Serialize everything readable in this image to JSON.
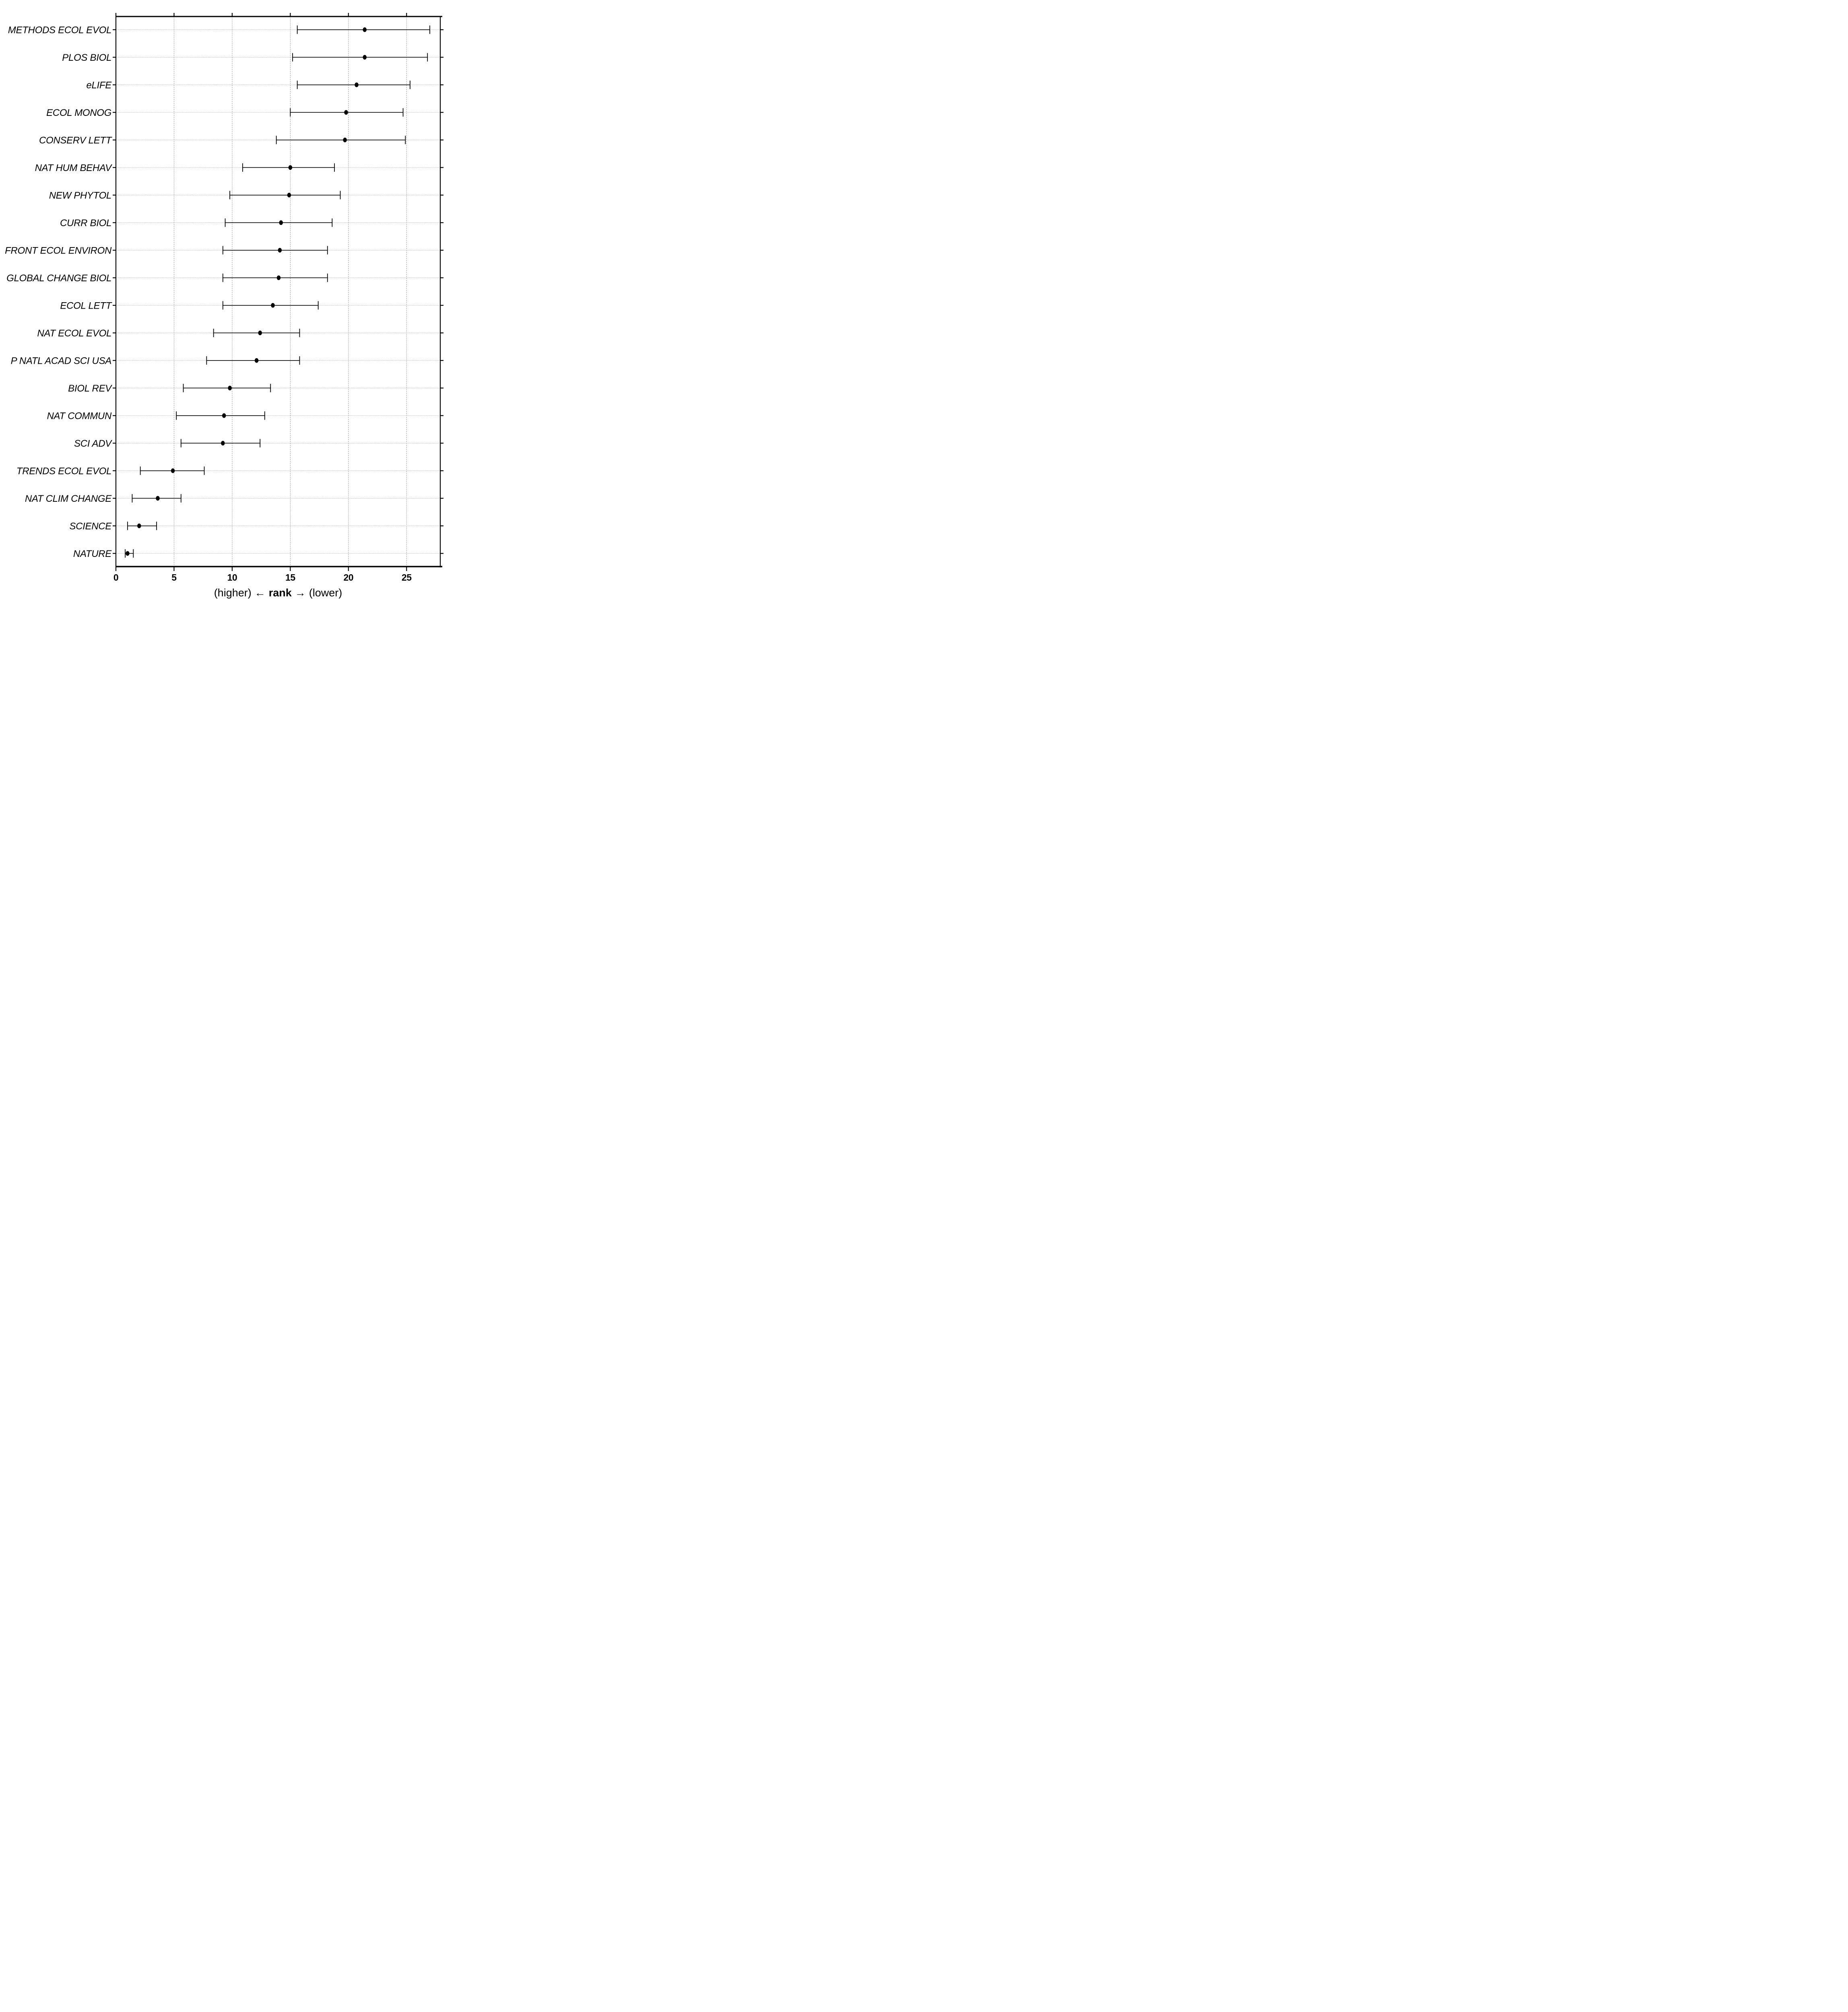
{
  "chart_data": {
    "type": "scatter",
    "variant": "horizontal-dot-plot-with-error-bars",
    "title": "",
    "xlabel_parts": {
      "higher": "(higher)",
      "arrow_left": "←",
      "rank": "rank",
      "arrow_right": "→",
      "lower": "(lower)"
    },
    "xlim": [
      0,
      28
    ],
    "xticks": [
      0,
      5,
      10,
      15,
      20,
      25
    ],
    "grid": {
      "vertical": "dashed gray at x = 5,10,15,20,25",
      "horizontal": "dotted gray at every category row",
      "frame": "closed black panel border with outward tick marks on all four sides"
    },
    "legend": "none",
    "ylabel": "",
    "rows": [
      {
        "label": "METHODS ECOL EVOL",
        "value": 21.4,
        "lo": 15.6,
        "hi": 27.0
      },
      {
        "label": "PLOS BIOL",
        "value": 21.4,
        "lo": 15.2,
        "hi": 26.8
      },
      {
        "label": "eLIFE",
        "value": 20.7,
        "lo": 15.6,
        "hi": 25.3
      },
      {
        "label": "ECOL MONOG",
        "value": 19.8,
        "lo": 15.0,
        "hi": 24.7
      },
      {
        "label": "CONSERV LETT",
        "value": 19.7,
        "lo": 13.8,
        "hi": 24.9
      },
      {
        "label": "NAT HUM BEHAV",
        "value": 15.0,
        "lo": 10.9,
        "hi": 18.8
      },
      {
        "label": "NEW PHYTOL",
        "value": 14.9,
        "lo": 9.8,
        "hi": 19.3
      },
      {
        "label": "CURR BIOL",
        "value": 14.2,
        "lo": 9.4,
        "hi": 18.6
      },
      {
        "label": "FRONT ECOL ENVIRON",
        "value": 14.1,
        "lo": 9.2,
        "hi": 18.2
      },
      {
        "label": "GLOBAL CHANGE BIOL",
        "value": 14.0,
        "lo": 9.2,
        "hi": 18.2
      },
      {
        "label": "ECOL LETT",
        "value": 13.5,
        "lo": 9.2,
        "hi": 17.4
      },
      {
        "label": "NAT ECOL EVOL",
        "value": 12.4,
        "lo": 8.4,
        "hi": 15.8
      },
      {
        "label": "P NATL ACAD SCI USA",
        "value": 12.1,
        "lo": 7.8,
        "hi": 15.8
      },
      {
        "label": "BIOL REV",
        "value": 9.8,
        "lo": 5.8,
        "hi": 13.3
      },
      {
        "label": "NAT COMMUN",
        "value": 9.3,
        "lo": 5.2,
        "hi": 12.8
      },
      {
        "label": "SCI ADV",
        "value": 9.2,
        "lo": 5.6,
        "hi": 12.4
      },
      {
        "label": "TRENDS ECOL EVOL",
        "value": 4.9,
        "lo": 2.1,
        "hi": 7.6
      },
      {
        "label": "NAT CLIM CHANGE",
        "value": 3.6,
        "lo": 1.4,
        "hi": 5.6
      },
      {
        "label": "SCIENCE",
        "value": 2.0,
        "lo": 1.0,
        "hi": 3.5
      },
      {
        "label": "NATURE",
        "value": 1.0,
        "lo": 0.8,
        "hi": 1.5
      }
    ],
    "colors": {
      "point": "#000000",
      "error_bar": "#000000",
      "frame": "#000000",
      "grid_dot": "#b0b0b0",
      "grid_dash": "#9e9e9e",
      "background": "#ffffff",
      "text": "#000000"
    }
  }
}
